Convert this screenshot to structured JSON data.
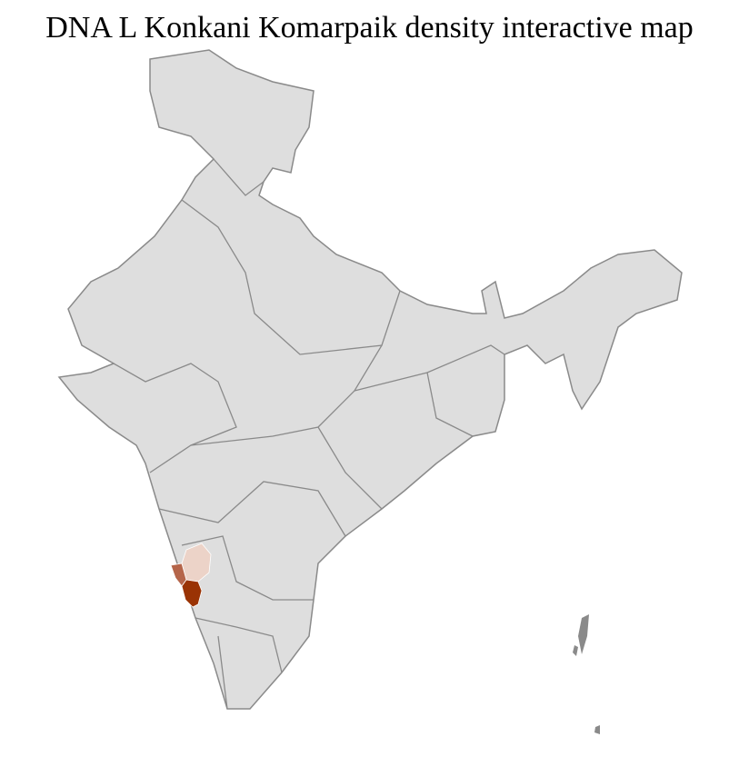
{
  "title": "DNA L Konkani Komarpaik density interactive map",
  "colors": {
    "base": "#dedede",
    "district_border": "#ffffff",
    "state_border": "#8a8a8a",
    "high": "#9a3304",
    "medium": "#b5654a",
    "low": "#ecd3c8"
  },
  "highlighted_regions": [
    {
      "level": "high"
    },
    {
      "level": "medium"
    },
    {
      "level": "low"
    }
  ]
}
